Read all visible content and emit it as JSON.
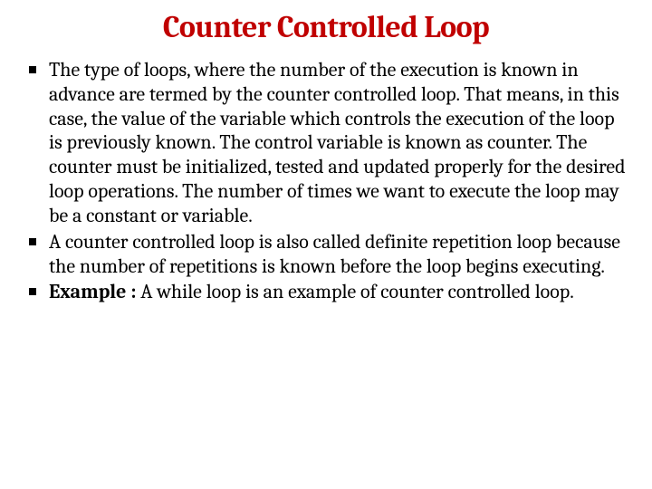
{
  "slide": {
    "title": "Counter Controlled Loop",
    "title_color": "#c00000",
    "title_fontsize": 34,
    "body_color": "#000000",
    "body_fontsize": 22,
    "line_height": 1.22,
    "background_color": "#ffffff",
    "bullets": [
      {
        "text": "The type of loops, where the number of the execution is known in advance are termed by the counter controlled loop. That means, in this case, the value of the variable which controls the execution of the loop is previously known. The control variable is known as counter. The counter must be initialized, tested and updated properly for the desired loop operations. The number of times we want to execute the loop may be a constant or variable."
      },
      {
        "text": "A counter controlled loop is also called definite repetition loop because the number of repetitions is known before the loop begins executing."
      },
      {
        "bold_prefix": "Example :",
        "text": " A while loop is an example of counter controlled loop."
      }
    ]
  }
}
